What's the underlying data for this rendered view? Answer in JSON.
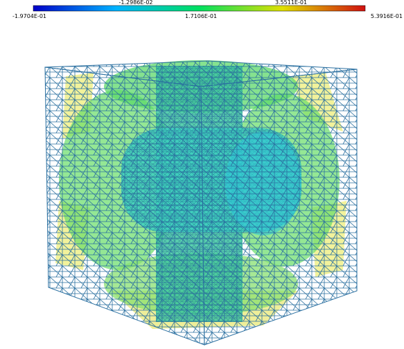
{
  "colorbar": {
    "ticks_top": [
      "-1.2986E-02",
      "3.5511E-01"
    ],
    "ticks_bottom": [
      "-1.9704E-01",
      "1.7106E-01",
      "5.3916E-01"
    ]
  }
}
